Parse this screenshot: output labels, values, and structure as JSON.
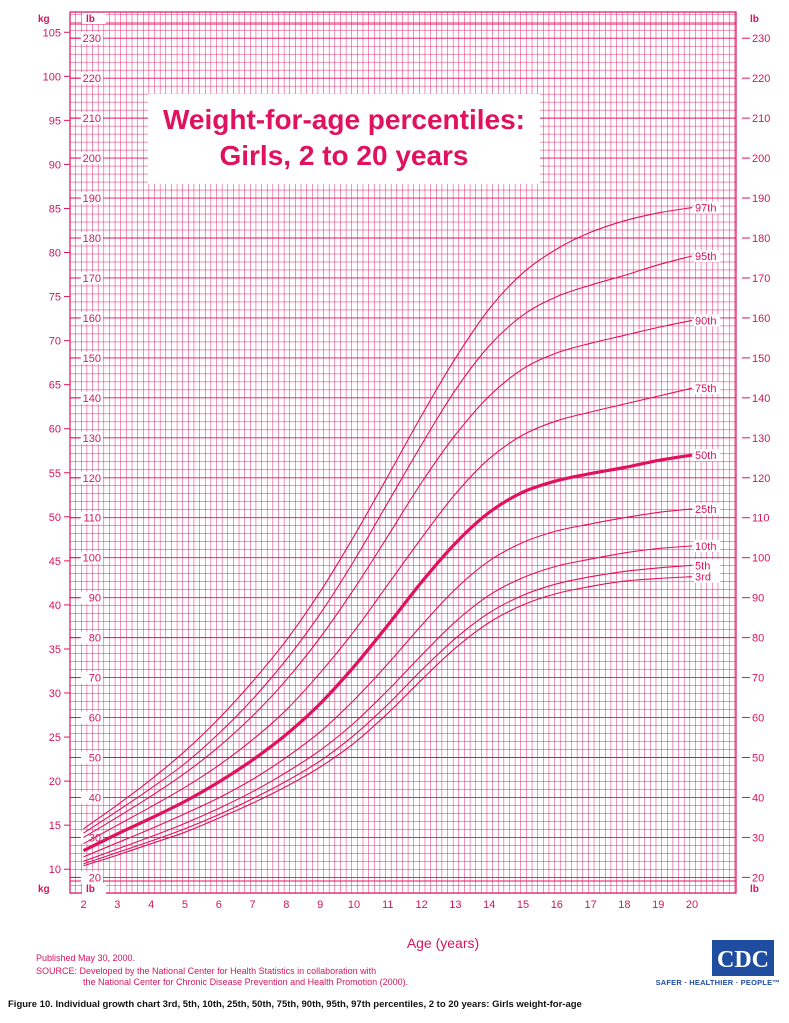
{
  "chart_data": {
    "type": "line",
    "title": "Weight-for-age percentiles:",
    "subtitle": "Girls, 2 to 20 years",
    "xlabel": "Age (years)",
    "x_ticks": [
      "2",
      "3",
      "4",
      "5",
      "6",
      "7",
      "8",
      "9",
      "10",
      "11",
      "12",
      "13",
      "14",
      "15",
      "16",
      "17",
      "18",
      "19",
      "20"
    ],
    "xlim": [
      1.6,
      21.3
    ],
    "kg_unit": "kg",
    "lb_unit": "lb",
    "kg_ticks": [
      "10",
      "15",
      "20",
      "25",
      "30",
      "35",
      "40",
      "45",
      "50",
      "55",
      "60",
      "65",
      "70",
      "75",
      "80",
      "85",
      "90",
      "95",
      "100",
      "105"
    ],
    "lb_ticks": [
      "20",
      "30",
      "40",
      "50",
      "60",
      "70",
      "80",
      "90",
      "100",
      "110",
      "120",
      "130",
      "140",
      "150",
      "160",
      "170",
      "180",
      "190",
      "200",
      "210",
      "220",
      "230"
    ],
    "ylim_kg": [
      7.3,
      107.3
    ],
    "grid": true,
    "x": [
      2,
      3,
      4,
      5,
      6,
      7,
      8,
      9,
      10,
      11,
      12,
      13,
      14,
      15,
      16,
      17,
      18,
      19,
      20
    ],
    "series": [
      {
        "name": "97th",
        "bold": false,
        "values": [
          14.6,
          17.3,
          20.2,
          23.4,
          27.1,
          31.3,
          36.0,
          41.5,
          47.8,
          54.6,
          61.5,
          68.0,
          73.6,
          77.7,
          80.4,
          82.3,
          83.6,
          84.5,
          85.1
        ]
      },
      {
        "name": "95th",
        "bold": false,
        "values": [
          14.1,
          16.6,
          19.2,
          22.0,
          25.4,
          29.3,
          33.8,
          39.0,
          45.0,
          51.6,
          58.2,
          64.4,
          69.4,
          72.9,
          75.0,
          76.3,
          77.4,
          78.6,
          79.6
        ]
      },
      {
        "name": "90th",
        "bold": false,
        "values": [
          13.6,
          15.9,
          18.3,
          20.9,
          23.9,
          27.4,
          31.5,
          36.3,
          41.8,
          47.8,
          53.9,
          59.3,
          63.7,
          66.8,
          68.6,
          69.7,
          70.6,
          71.5,
          72.3
        ]
      },
      {
        "name": "75th",
        "bold": false,
        "values": [
          12.9,
          15.0,
          17.1,
          19.3,
          21.8,
          24.7,
          28.1,
          32.3,
          37.0,
          42.3,
          47.6,
          52.6,
          56.6,
          59.3,
          60.9,
          61.9,
          62.8,
          63.7,
          64.6
        ]
      },
      {
        "name": "50th",
        "bold": true,
        "values": [
          12.1,
          14.0,
          15.8,
          17.7,
          19.9,
          22.4,
          25.3,
          28.8,
          33.0,
          37.7,
          42.6,
          47.0,
          50.5,
          52.8,
          54.1,
          54.9,
          55.6,
          56.4,
          57.0
        ]
      },
      {
        "name": "25th",
        "bold": false,
        "values": [
          11.4,
          13.0,
          14.6,
          16.3,
          18.1,
          20.2,
          22.7,
          25.6,
          29.2,
          33.3,
          37.7,
          41.8,
          45.0,
          47.1,
          48.4,
          49.2,
          49.9,
          50.5,
          50.9
        ]
      },
      {
        "name": "10th",
        "bold": false,
        "values": [
          10.9,
          12.3,
          13.7,
          15.2,
          16.9,
          18.8,
          21.0,
          23.5,
          26.6,
          30.3,
          34.3,
          38.1,
          41.1,
          43.1,
          44.4,
          45.2,
          45.9,
          46.4,
          46.7
        ]
      },
      {
        "name": "5th",
        "bold": false,
        "values": [
          10.6,
          11.9,
          13.2,
          14.6,
          16.2,
          18.0,
          20.0,
          22.3,
          25.2,
          28.7,
          32.6,
          36.2,
          39.1,
          41.1,
          42.4,
          43.2,
          43.8,
          44.2,
          44.5
        ]
      },
      {
        "name": "3rd",
        "bold": false,
        "values": [
          10.4,
          11.6,
          12.9,
          14.2,
          15.8,
          17.5,
          19.4,
          21.6,
          24.3,
          27.7,
          31.5,
          35.1,
          38.0,
          40.0,
          41.3,
          42.1,
          42.7,
          43.0,
          43.2
        ]
      }
    ]
  },
  "footer": {
    "published": "Published May 30, 2000.",
    "source_line1": "SOURCE: Developed by the National Center for Health Statistics in collaboration with",
    "source_line2": "the National Center for Chronic Disease Prevention and Health Promotion (2000).",
    "caption": "Figure 10. Individual growth chart 3rd, 5th, 10th, 25th, 50th, 75th, 90th, 95th, 97th percentiles, 2 to 20 years: Girls weight-for-age"
  },
  "logo": {
    "text": "CDC",
    "tagline": "SAFER · HEALTHIER · PEOPLE™"
  },
  "colors": {
    "grid": "#e0115f",
    "curve": "#e0115f",
    "text": "#d6145f",
    "logo": "#1f4ea1"
  }
}
